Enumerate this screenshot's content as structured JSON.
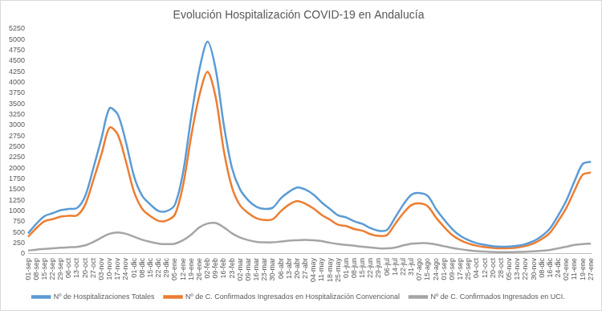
{
  "chart_data": {
    "type": "line",
    "title": "Evolución Hospitalización COVID-19 en Andalucía",
    "categories": [
      "01-sep",
      "08-sep",
      "15-sep",
      "22-sep",
      "29-sep",
      "06-oct",
      "13-oct",
      "20-oct",
      "27-oct",
      "03-nov",
      "10-nov",
      "17-nov",
      "24-nov",
      "01-dic",
      "08-dic",
      "15-dic",
      "22-dic",
      "29-dic",
      "05-ene",
      "12-ene",
      "19-ene",
      "26-ene",
      "02-feb",
      "09-feb",
      "16-feb",
      "23-feb",
      "02-mar",
      "09-mar",
      "16-mar",
      "23-mar",
      "30-mar",
      "06-abr",
      "13-abr",
      "20-abr",
      "27-abr",
      "04-may",
      "11-may",
      "18-may",
      "25-may",
      "01-jun",
      "08-jun",
      "15-jun",
      "22-jun",
      "29-jun",
      "06-jul",
      "14-jul",
      "22-jul",
      "31-jul",
      "07-ago",
      "15-ago",
      "24-ago",
      "01-sep",
      "09-sep",
      "17-sep",
      "25-sep",
      "04-oct",
      "12-oct",
      "20-oct",
      "28-oct",
      "05-nov",
      "13-nov",
      "22-nov",
      "30-nov",
      "08-dic",
      "16-dic",
      "24-dic",
      "02-ene",
      "11-ene",
      "19-ene",
      "27-ene"
    ],
    "series": [
      {
        "name": "Nº de Hospitalizaciones Totales",
        "color": "#5b9bd5",
        "values": [
          480,
          700,
          880,
          950,
          1020,
          1050,
          1070,
          1350,
          2000,
          2700,
          3400,
          3250,
          2600,
          1800,
          1350,
          1150,
          1000,
          1000,
          1150,
          1900,
          3200,
          4300,
          4950,
          4300,
          3000,
          2000,
          1500,
          1250,
          1100,
          1050,
          1080,
          1300,
          1450,
          1550,
          1500,
          1380,
          1200,
          1050,
          900,
          850,
          760,
          700,
          600,
          540,
          560,
          850,
          1150,
          1380,
          1420,
          1350,
          1050,
          800,
          580,
          420,
          320,
          250,
          210,
          180,
          170,
          175,
          190,
          230,
          300,
          420,
          600,
          900,
          1250,
          1700,
          2100,
          2150
        ]
      },
      {
        "name": "Nº de C. Confirmados Ingresados en Hospitalización Convencional",
        "color": "#ed7d31",
        "values": [
          400,
          600,
          760,
          810,
          870,
          890,
          900,
          1150,
          1720,
          2330,
          2950,
          2780,
          2150,
          1440,
          1050,
          880,
          770,
          780,
          920,
          1600,
          2750,
          3700,
          4250,
          3650,
          2400,
          1550,
          1130,
          950,
          830,
          790,
          810,
          1000,
          1150,
          1230,
          1170,
          1060,
          910,
          800,
          680,
          650,
          580,
          540,
          460,
          420,
          440,
          700,
          950,
          1140,
          1180,
          1110,
          850,
          630,
          440,
          320,
          240,
          190,
          160,
          140,
          130,
          135,
          150,
          185,
          245,
          350,
          500,
          770,
          1080,
          1480,
          1850,
          1900
        ]
      },
      {
        "name": "Nº de C. Confirmados Ingresados en UCI.",
        "color": "#a5a5a5",
        "values": [
          80,
          100,
          115,
          130,
          145,
          155,
          165,
          200,
          280,
          380,
          470,
          500,
          470,
          400,
          330,
          280,
          240,
          230,
          240,
          320,
          450,
          620,
          710,
          720,
          620,
          480,
          380,
          320,
          280,
          270,
          270,
          290,
          310,
          320,
          330,
          320,
          300,
          260,
          230,
          210,
          190,
          170,
          150,
          130,
          130,
          150,
          200,
          240,
          250,
          250,
          220,
          180,
          140,
          110,
          85,
          65,
          55,
          45,
          40,
          42,
          45,
          50,
          60,
          75,
          95,
          130,
          170,
          210,
          230,
          240
        ]
      }
    ],
    "ylim": [
      0,
      5250
    ],
    "yticks": [
      0,
      250,
      500,
      750,
      1000,
      1250,
      1500,
      1750,
      2000,
      2250,
      2500,
      2750,
      3000,
      3250,
      3500,
      3750,
      4000,
      4250,
      4500,
      4750,
      5000,
      5250
    ],
    "grid": false,
    "legend": "bottom"
  }
}
